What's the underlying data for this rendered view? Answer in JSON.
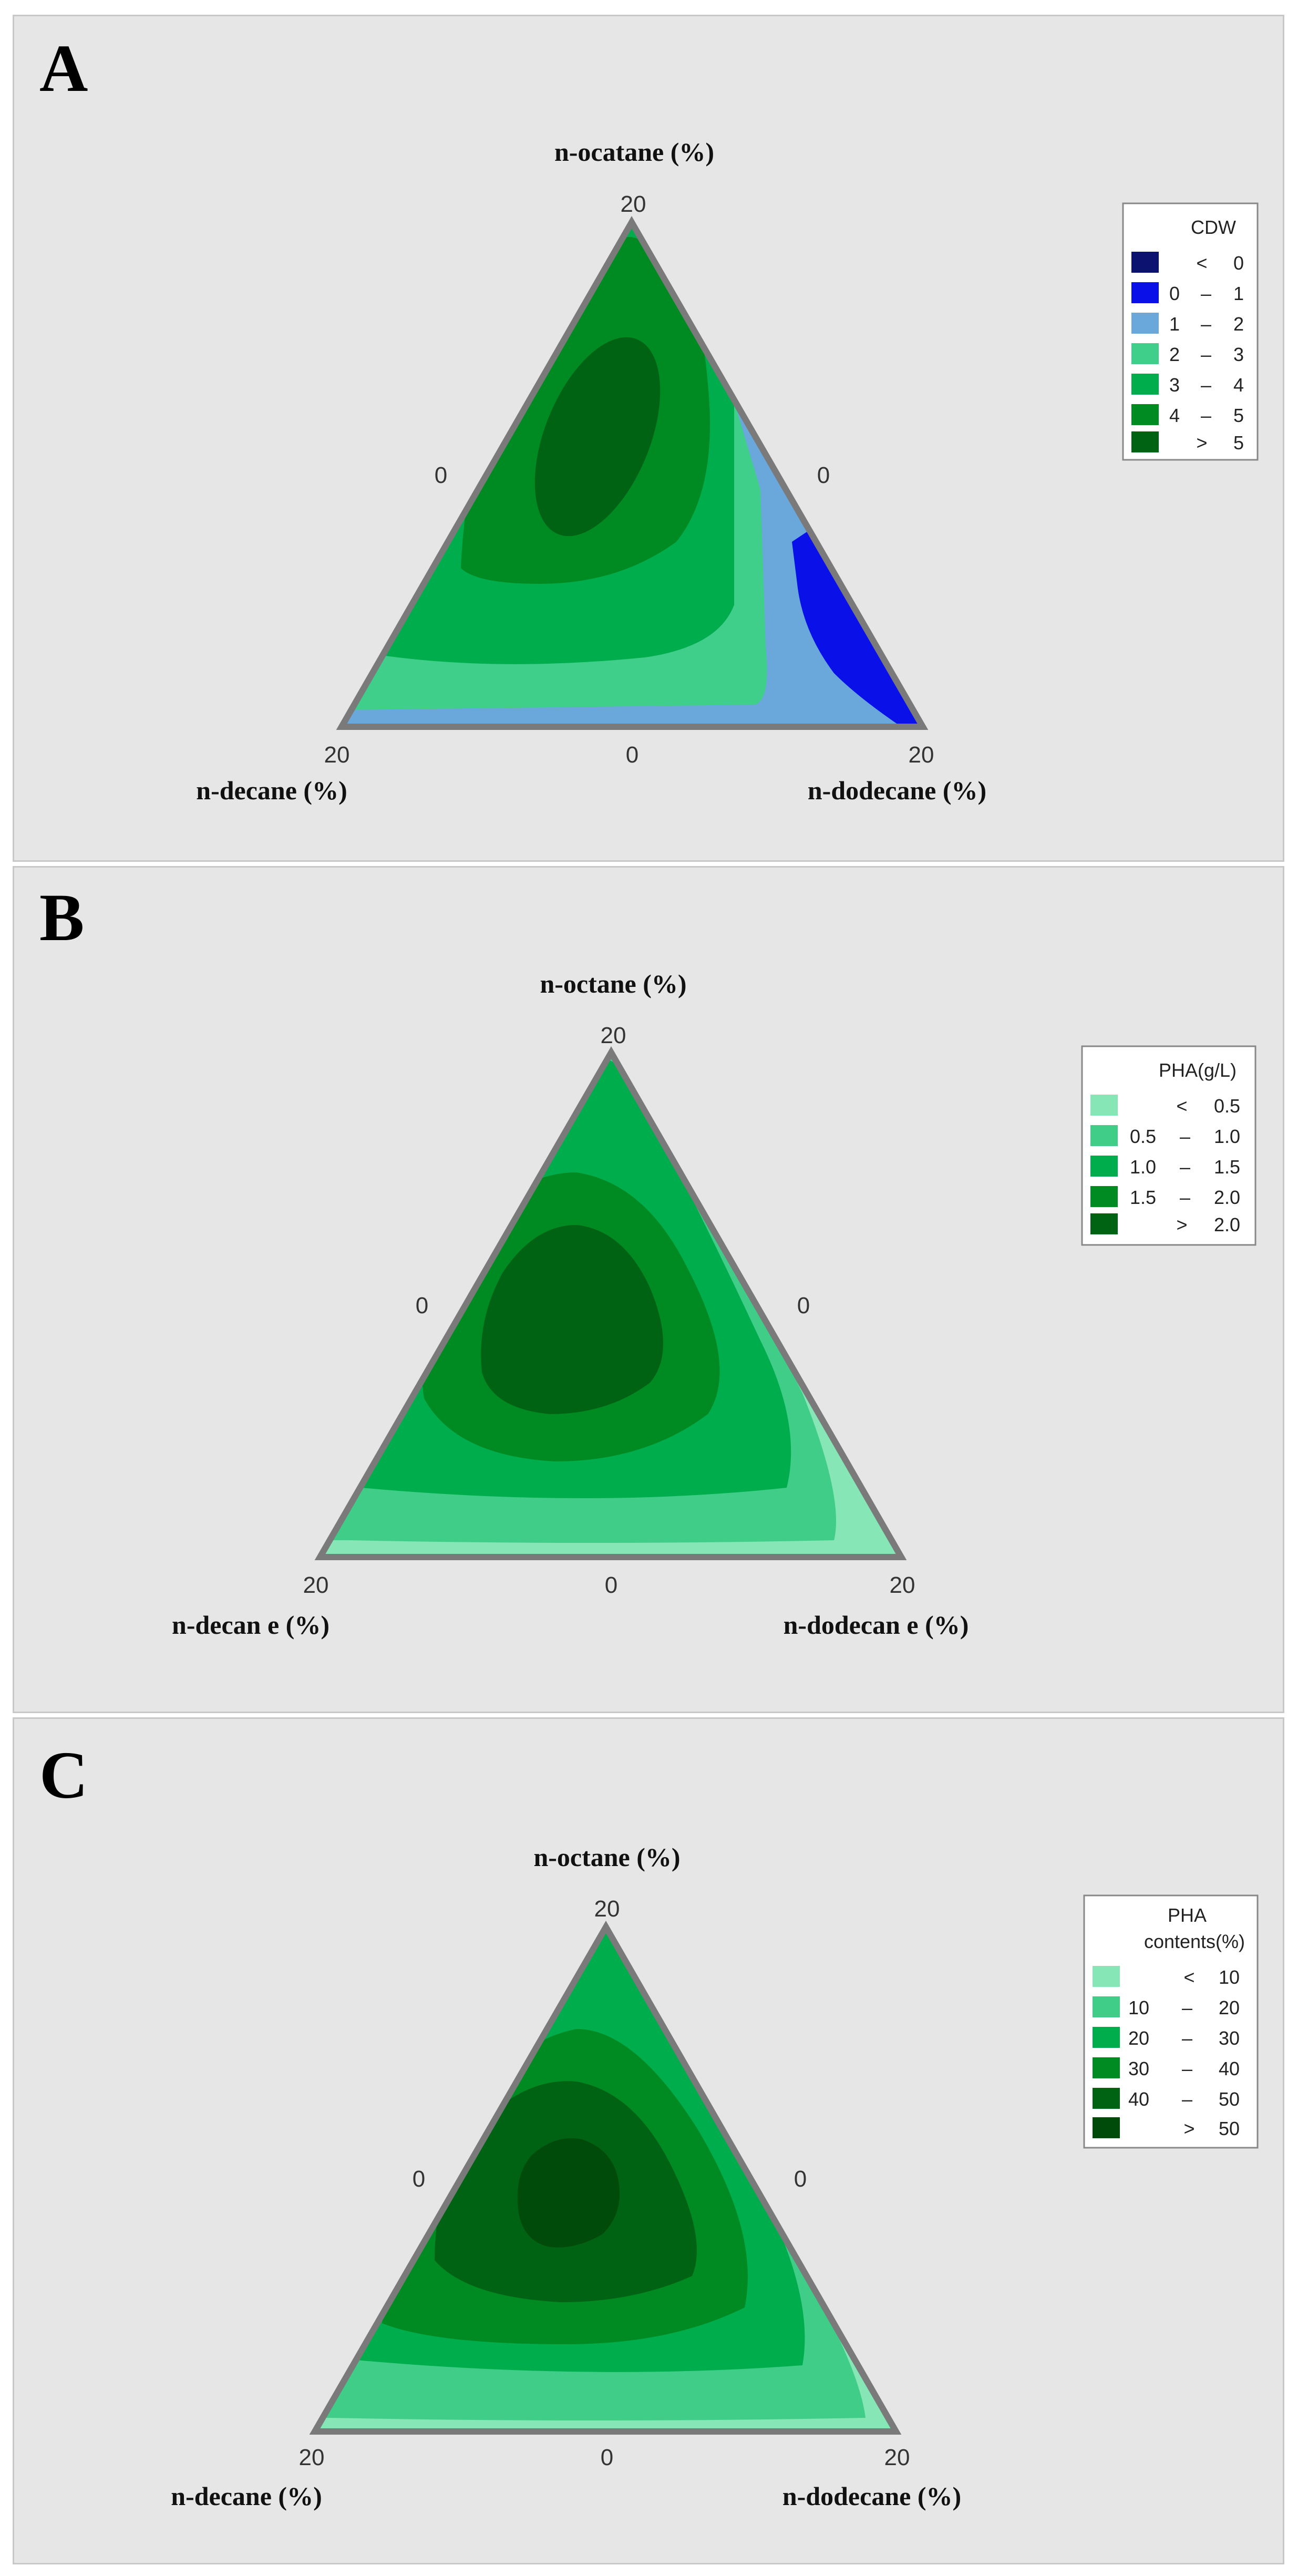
{
  "chart_data": [
    {
      "type": "contour",
      "panel_label": "A",
      "top_vertex_label": "n-ocatane (%)",
      "left_vertex_label": "n-decane (%)",
      "right_vertex_label": "n-dodecane (%)",
      "ticks": {
        "top": "20",
        "left": "20",
        "right": "20",
        "bottom_mid": "0",
        "left_mid": "0",
        "right_mid": "0"
      },
      "legend": {
        "title": [
          "CDW"
        ],
        "ranges": [
          {
            "lo": "<",
            "sep": "",
            "hi": "0",
            "color": "#0c1270"
          },
          {
            "lo": "0",
            "sep": "–",
            "hi": "1",
            "color": "#0a10e8"
          },
          {
            "lo": "1",
            "sep": "–",
            "hi": "2",
            "color": "#6aa8dc"
          },
          {
            "lo": "2",
            "sep": "–",
            "hi": "3",
            "color": "#3fcf8b"
          },
          {
            "lo": "3",
            "sep": "–",
            "hi": "4",
            "color": "#00ad4c"
          },
          {
            "lo": "4",
            "sep": "–",
            "hi": "5",
            "color": "#008a22"
          },
          {
            "lo": ">",
            "sep": "",
            "hi": "5",
            "color": "#006213"
          }
        ]
      }
    },
    {
      "type": "contour",
      "panel_label": "B",
      "top_vertex_label": "n-octane (%)",
      "left_vertex_label": "n-decan e (%)",
      "right_vertex_label": "n-dodecan e (%)",
      "ticks": {
        "top": "20",
        "left": "20",
        "right": "20",
        "bottom_mid": "0",
        "left_mid": "0",
        "right_mid": "0"
      },
      "legend": {
        "title": [
          "PHA(g/L)"
        ],
        "ranges": [
          {
            "lo": "<",
            "sep": "",
            "hi": "0.5",
            "color": "#86e6b6"
          },
          {
            "lo": "0.5",
            "sep": "–",
            "hi": "1.0",
            "color": "#3fcd87"
          },
          {
            "lo": "1.0",
            "sep": "–",
            "hi": "1.5",
            "color": "#00ad4c"
          },
          {
            "lo": "1.5",
            "sep": "–",
            "hi": "2.0",
            "color": "#008a22"
          },
          {
            "lo": ">",
            "sep": "",
            "hi": "2.0",
            "color": "#006213"
          }
        ]
      }
    },
    {
      "type": "contour",
      "panel_label": "C",
      "top_vertex_label": "n-octane (%)",
      "left_vertex_label": "n-decane (%)",
      "right_vertex_label": "n-dodecane (%)",
      "ticks": {
        "top": "20",
        "left": "20",
        "right": "20",
        "bottom_mid": "0",
        "left_mid": "0",
        "right_mid": "0"
      },
      "legend": {
        "title": [
          "PHA",
          "contents(%)"
        ],
        "ranges": [
          {
            "lo": "<",
            "sep": "",
            "hi": "10",
            "color": "#86e6b6"
          },
          {
            "lo": "10",
            "sep": "–",
            "hi": "20",
            "color": "#3fcd87"
          },
          {
            "lo": "20",
            "sep": "–",
            "hi": "30",
            "color": "#00ad4c"
          },
          {
            "lo": "30",
            "sep": "–",
            "hi": "40",
            "color": "#008a22"
          },
          {
            "lo": "40",
            "sep": "–",
            "hi": "50",
            "color": "#006213"
          },
          {
            "lo": ">",
            "sep": "",
            "hi": "50",
            "color": "#004a0a"
          }
        ]
      }
    }
  ]
}
